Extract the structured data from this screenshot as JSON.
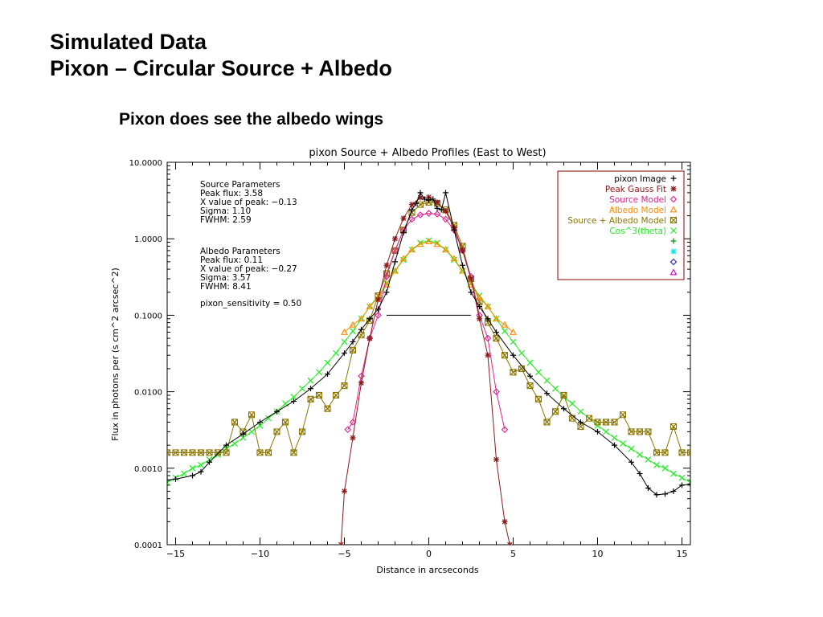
{
  "slide": {
    "title_line1": "Simulated Data",
    "title_line2": "Pixon – Circular Source + Albedo",
    "subtitle": "Pixon does see the albedo wings"
  },
  "chart_data": {
    "type": "line",
    "title": "pixon Source + Albedo Profiles (East to West)",
    "xlabel": "Distance in arcseconds",
    "ylabel": "Flux in photons per (s cm^2 arcsec^2)",
    "xlim": [
      -15.5,
      15.5
    ],
    "ylim": [
      0.0001,
      10
    ],
    "yscale": "log",
    "x_ticks": [
      -15,
      -10,
      -5,
      0,
      5,
      10,
      15
    ],
    "x_tick_labels": [
      "−15",
      "−10",
      "−5",
      "0",
      "5",
      "10",
      "15"
    ],
    "y_ticks": [
      0.0001,
      0.001,
      0.01,
      0.1,
      1,
      10
    ],
    "y_tick_labels": [
      "0.0001",
      "0.0010",
      "0.0100",
      "0.1000",
      "1.0000",
      "10.0000"
    ],
    "grid": false,
    "legend_position": "top-right",
    "colors": {
      "image": "#000000",
      "gauss": "#8b1a1a",
      "source": "#e0208f",
      "albedo": "#ff8c00",
      "combined": "#8b7500",
      "cos": "#22ee22",
      "extra_green": "#008800",
      "extra_cyan": "#00e5ee",
      "extra_blue": "#2020c0",
      "extra_magenta": "#cc00cc"
    },
    "legend": [
      {
        "label": "pixon Image",
        "symbol": "+",
        "color": "#000000"
      },
      {
        "label": "Peak Gauss Fit",
        "symbol": "*",
        "color": "#8b1a1a"
      },
      {
        "label": "Source Model",
        "symbol": "diamond",
        "color": "#e0208f"
      },
      {
        "label": "Albedo Model",
        "symbol": "triangle",
        "color": "#ff8c00"
      },
      {
        "label": "Source + Albedo Model",
        "symbol": "square",
        "color": "#8b7500"
      },
      {
        "label": "Cos^3(theta)",
        "symbol": "x",
        "color": "#22ee22"
      },
      {
        "label": "",
        "symbol": "+",
        "color": "#008800"
      },
      {
        "label": "",
        "symbol": "*",
        "color": "#00e5ee"
      },
      {
        "label": "",
        "symbol": "diamond",
        "color": "#2020c0"
      },
      {
        "label": "",
        "symbol": "triangle",
        "color": "#cc00cc"
      }
    ],
    "annotations": [
      "Source Parameters",
      "Peak flux: 3.58",
      "X value of peak: −0.13",
      "Sigma: 1.10",
      "FWHM: 2.59",
      "Albedo Parameters",
      "Peak flux: 0.11",
      "X value of peak: −0.27",
      "Sigma: 3.57",
      "FWHM: 8.41",
      "pixon_sensitivity = 0.50"
    ],
    "fwhm_line": {
      "x": [
        -2.5,
        2.5
      ],
      "y": 0.1
    },
    "series": [
      {
        "name": "pixon Image",
        "x": [
          -15.5,
          -15,
          -14,
          -13.5,
          -13,
          -12,
          -11,
          -10,
          -9,
          -8,
          -7,
          -6,
          -5,
          -4.5,
          -4,
          -3.5,
          -3,
          -2.5,
          -2,
          -1.5,
          -1,
          -0.75,
          -0.5,
          -0.25,
          0,
          0.25,
          0.5,
          0.75,
          1,
          1.5,
          2,
          2.5,
          3,
          3.5,
          4,
          5,
          6,
          7,
          8,
          9,
          10,
          11,
          12,
          12.5,
          13,
          13.5,
          14,
          14.5,
          15,
          15.5
        ],
        "y": [
          0.0007,
          0.00072,
          0.0008,
          0.0009,
          0.0012,
          0.002,
          0.0028,
          0.004,
          0.0055,
          0.0075,
          0.011,
          0.017,
          0.032,
          0.045,
          0.065,
          0.09,
          0.12,
          0.2,
          0.5,
          1.2,
          2.4,
          2.9,
          4.0,
          3.3,
          3.2,
          3.3,
          2.5,
          2.4,
          4.0,
          1.3,
          0.45,
          0.2,
          0.13,
          0.09,
          0.06,
          0.03,
          0.016,
          0.0095,
          0.006,
          0.004,
          0.003,
          0.002,
          0.0012,
          0.00085,
          0.00055,
          0.00045,
          0.00046,
          0.0005,
          0.0006,
          0.00062
        ]
      },
      {
        "name": "Peak Gauss Fit",
        "x": [
          -5.2,
          -5,
          -4.5,
          -4,
          -3.5,
          -3,
          -2.5,
          -2,
          -1.5,
          -1,
          -0.5,
          0,
          0.5,
          1,
          1.5,
          2,
          2.5,
          3,
          3.5,
          4,
          4.5,
          4.8
        ],
        "y": [
          0.0001,
          0.0005,
          0.0025,
          0.013,
          0.05,
          0.16,
          0.45,
          1.0,
          1.85,
          2.8,
          3.45,
          3.5,
          3.0,
          2.3,
          1.4,
          0.7,
          0.3,
          0.09,
          0.03,
          0.0013,
          0.0002,
          0.0001
        ]
      },
      {
        "name": "Source Model",
        "x": [
          -4.8,
          -4.5,
          -4,
          -3.5,
          -3,
          -2.5,
          -2,
          -1.5,
          -1,
          -0.5,
          0,
          0.5,
          1,
          1.5,
          2,
          2.5,
          3,
          3.5,
          4,
          4.5
        ],
        "y": [
          0.0032,
          0.004,
          0.016,
          0.05,
          0.1,
          0.32,
          0.7,
          1.3,
          1.8,
          2.05,
          2.15,
          2.1,
          1.8,
          1.3,
          0.7,
          0.32,
          0.1,
          0.05,
          0.01,
          0.0032
        ]
      },
      {
        "name": "Albedo Model",
        "x": [
          -5,
          -4.5,
          -4,
          -3.5,
          -3,
          -2.5,
          -2,
          -1.5,
          -1,
          -0.5,
          0,
          0.5,
          1,
          1.5,
          2,
          2.5,
          3,
          3.5,
          4,
          4.5,
          5
        ],
        "y": [
          0.06,
          0.075,
          0.09,
          0.13,
          0.17,
          0.25,
          0.38,
          0.55,
          0.72,
          0.85,
          0.92,
          0.85,
          0.72,
          0.55,
          0.38,
          0.25,
          0.17,
          0.13,
          0.09,
          0.075,
          0.06
        ]
      },
      {
        "name": "Source + Albedo Model",
        "x": [
          -15.5,
          -15,
          -14.5,
          -14,
          -13.5,
          -13,
          -12.5,
          -12,
          -11.5,
          -11,
          -10.5,
          -10,
          -9.5,
          -9,
          -8.5,
          -8,
          -7.5,
          -7,
          -6.5,
          -6,
          -5.5,
          -5,
          -4.5,
          -4,
          -3.5,
          -3,
          -2.5,
          -2,
          -1.5,
          -1,
          -0.5,
          0,
          0.5,
          1,
          1.5,
          2,
          2.5,
          3,
          3.5,
          4,
          4.5,
          5,
          5.5,
          6,
          6.5,
          7,
          7.5,
          8,
          8.5,
          9,
          9.5,
          10,
          10.5,
          11,
          11.5,
          12,
          12.5,
          13,
          13.5,
          14,
          14.5,
          15,
          15.5
        ],
        "y": [
          0.0016,
          0.0016,
          0.0016,
          0.0016,
          0.0016,
          0.0016,
          0.0016,
          0.0016,
          0.004,
          0.003,
          0.005,
          0.0016,
          0.0016,
          0.003,
          0.004,
          0.0016,
          0.003,
          0.008,
          0.009,
          0.006,
          0.009,
          0.012,
          0.035,
          0.055,
          0.085,
          0.18,
          0.35,
          0.7,
          1.3,
          2.2,
          2.8,
          3.0,
          2.9,
          2.4,
          1.5,
          0.8,
          0.3,
          0.15,
          0.08,
          0.05,
          0.03,
          0.018,
          0.02,
          0.012,
          0.008,
          0.004,
          0.0055,
          0.009,
          0.0045,
          0.0035,
          0.0045,
          0.004,
          0.004,
          0.004,
          0.005,
          0.003,
          0.003,
          0.003,
          0.0016,
          0.0016,
          0.0035,
          0.0016,
          0.0016
        ]
      },
      {
        "name": "Cos^3(theta)",
        "x": [
          -15.5,
          -15,
          -14.5,
          -14,
          -13.5,
          -13,
          -12.5,
          -12,
          -11.5,
          -11,
          -10.5,
          -10,
          -9.5,
          -9,
          -8.5,
          -8,
          -7.5,
          -7,
          -6.5,
          -6,
          -5.5,
          -5,
          -4.5,
          -4,
          -3.5,
          -3,
          -2.5,
          -2,
          -1.5,
          -1,
          -0.5,
          0,
          0.5,
          1,
          1.5,
          2,
          2.5,
          3,
          3.5,
          4,
          4.5,
          5,
          5.5,
          6,
          6.5,
          7,
          7.5,
          8,
          8.5,
          9,
          9.5,
          10,
          10.5,
          11,
          11.5,
          12,
          12.5,
          13,
          13.5,
          14,
          14.5,
          15,
          15.5
        ],
        "y": [
          0.00065,
          0.00075,
          0.00085,
          0.001,
          0.0011,
          0.0013,
          0.0015,
          0.0018,
          0.0021,
          0.0025,
          0.003,
          0.0036,
          0.0045,
          0.0055,
          0.007,
          0.0085,
          0.011,
          0.014,
          0.018,
          0.024,
          0.032,
          0.045,
          0.062,
          0.09,
          0.13,
          0.18,
          0.26,
          0.38,
          0.53,
          0.72,
          0.88,
          0.95,
          0.88,
          0.72,
          0.53,
          0.38,
          0.26,
          0.18,
          0.13,
          0.09,
          0.062,
          0.045,
          0.032,
          0.024,
          0.018,
          0.014,
          0.011,
          0.0085,
          0.007,
          0.0055,
          0.0045,
          0.0036,
          0.003,
          0.0025,
          0.0021,
          0.0018,
          0.0015,
          0.0013,
          0.0011,
          0.001,
          0.00085,
          0.00075,
          0.00065
        ]
      }
    ]
  }
}
